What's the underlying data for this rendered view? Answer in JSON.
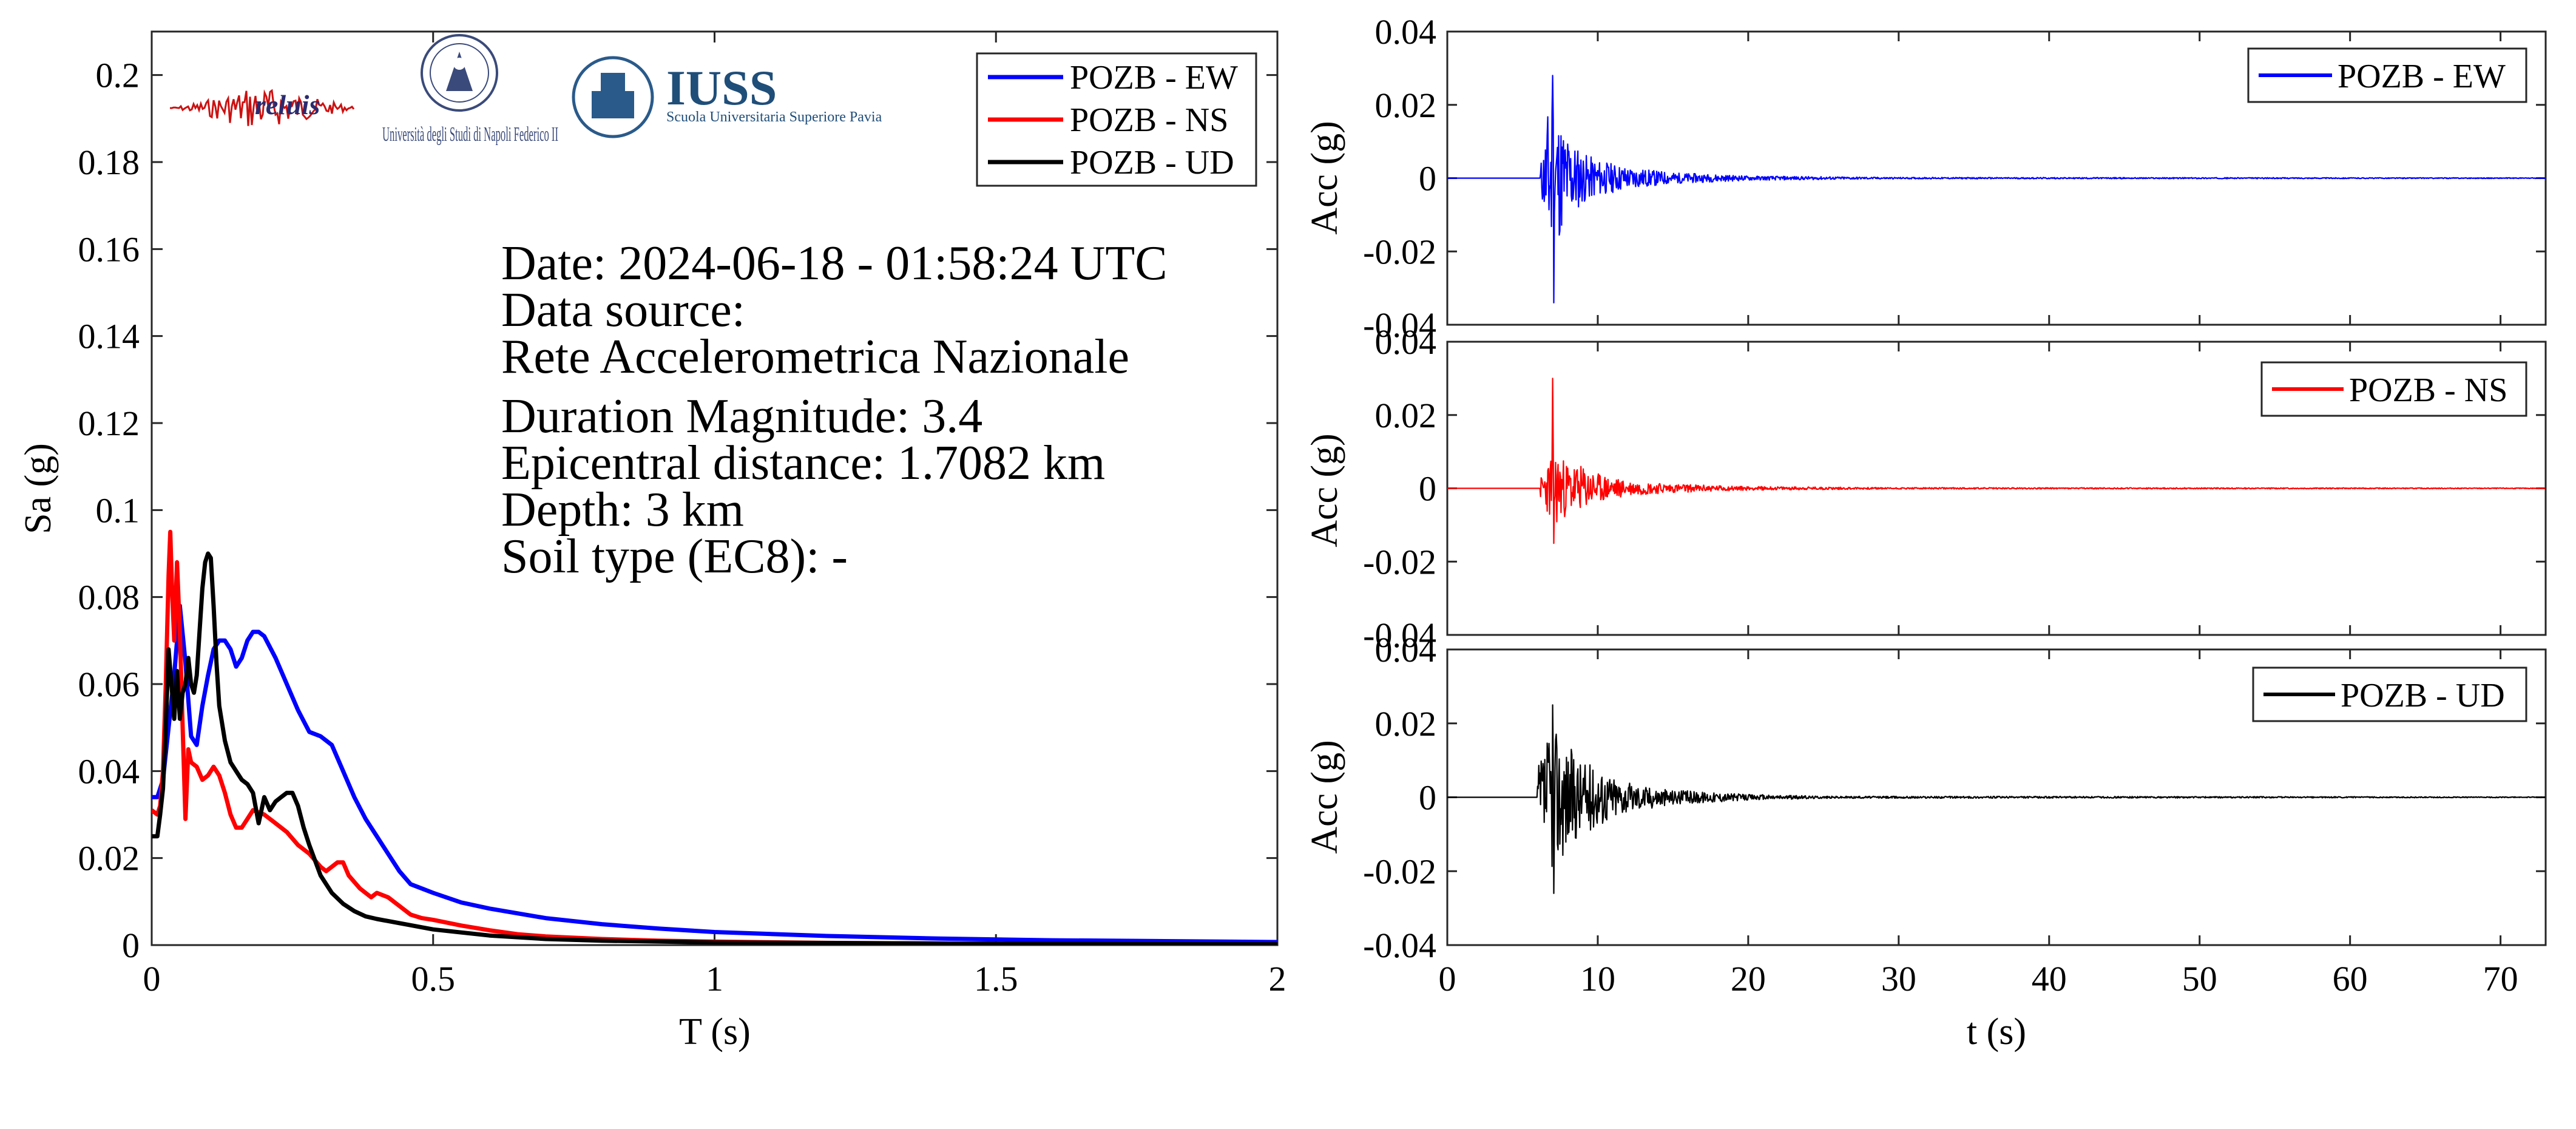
{
  "chart_data": [
    {
      "type": "line",
      "xlabel": "T (s)",
      "ylabel": "Sa (g)",
      "xlim": [
        0,
        2
      ],
      "ylim": [
        0,
        0.21
      ],
      "xticks": [
        0,
        0.5,
        1,
        1.5,
        2
      ],
      "xtick_labels": [
        "0",
        "0.5",
        "1",
        "1.5",
        "2"
      ],
      "yticks": [
        0,
        0.02,
        0.04,
        0.06,
        0.08,
        0.1,
        0.12,
        0.14,
        0.16,
        0.18,
        0.2
      ],
      "ytick_labels": [
        "0",
        "0.02",
        "0.04",
        "0.06",
        "0.08",
        "0.1",
        "0.12",
        "0.14",
        "0.16",
        "0.18",
        "0.2"
      ],
      "grid": false,
      "legend_position": "top-right",
      "annotations": [
        "Date: 2024-06-18 - 01:58:24 UTC",
        "Data source:",
        "Rete Accelerometrica Nazionale",
        "Duration Magnitude: 3.4",
        "Epicentral distance: 1.7082 km",
        "Depth: 3 km",
        "Soil type (EC8): -"
      ],
      "series": [
        {
          "name": "POZB - EW",
          "color": "#0000ff",
          "points": [
            [
              0,
              0.034
            ],
            [
              0.01,
              0.034
            ],
            [
              0.02,
              0.038
            ],
            [
              0.03,
              0.05
            ],
            [
              0.04,
              0.062
            ],
            [
              0.05,
              0.078
            ],
            [
              0.06,
              0.065
            ],
            [
              0.07,
              0.048
            ],
            [
              0.08,
              0.046
            ],
            [
              0.09,
              0.055
            ],
            [
              0.1,
              0.062
            ],
            [
              0.11,
              0.068
            ],
            [
              0.12,
              0.07
            ],
            [
              0.13,
              0.07
            ],
            [
              0.14,
              0.068
            ],
            [
              0.15,
              0.064
            ],
            [
              0.16,
              0.066
            ],
            [
              0.17,
              0.07
            ],
            [
              0.18,
              0.072
            ],
            [
              0.19,
              0.072
            ],
            [
              0.2,
              0.071
            ],
            [
              0.22,
              0.066
            ],
            [
              0.24,
              0.06
            ],
            [
              0.26,
              0.054
            ],
            [
              0.28,
              0.049
            ],
            [
              0.3,
              0.048
            ],
            [
              0.32,
              0.046
            ],
            [
              0.34,
              0.04
            ],
            [
              0.36,
              0.034
            ],
            [
              0.38,
              0.029
            ],
            [
              0.4,
              0.025
            ],
            [
              0.42,
              0.021
            ],
            [
              0.44,
              0.017
            ],
            [
              0.46,
              0.014
            ],
            [
              0.48,
              0.013
            ],
            [
              0.5,
              0.012
            ],
            [
              0.55,
              0.0098
            ],
            [
              0.6,
              0.0084
            ],
            [
              0.7,
              0.0062
            ],
            [
              0.8,
              0.0048
            ],
            [
              0.9,
              0.0038
            ],
            [
              1.0,
              0.003
            ],
            [
              1.2,
              0.0021
            ],
            [
              1.4,
              0.0015
            ],
            [
              1.6,
              0.0011
            ],
            [
              1.8,
              0.0009
            ],
            [
              2.0,
              0.0007
            ]
          ]
        },
        {
          "name": "POZB - NS",
          "color": "#ff0000",
          "points": [
            [
              0,
              0.031
            ],
            [
              0.01,
              0.03
            ],
            [
              0.015,
              0.032
            ],
            [
              0.02,
              0.04
            ],
            [
              0.025,
              0.06
            ],
            [
              0.03,
              0.085
            ],
            [
              0.033,
              0.095
            ],
            [
              0.036,
              0.082
            ],
            [
              0.04,
              0.07
            ],
            [
              0.045,
              0.088
            ],
            [
              0.05,
              0.072
            ],
            [
              0.055,
              0.05
            ],
            [
              0.06,
              0.029
            ],
            [
              0.065,
              0.045
            ],
            [
              0.07,
              0.042
            ],
            [
              0.08,
              0.041
            ],
            [
              0.09,
              0.038
            ],
            [
              0.1,
              0.039
            ],
            [
              0.11,
              0.041
            ],
            [
              0.12,
              0.039
            ],
            [
              0.13,
              0.035
            ],
            [
              0.14,
              0.03
            ],
            [
              0.15,
              0.027
            ],
            [
              0.16,
              0.027
            ],
            [
              0.17,
              0.029
            ],
            [
              0.18,
              0.031
            ],
            [
              0.2,
              0.03
            ],
            [
              0.22,
              0.028
            ],
            [
              0.24,
              0.026
            ],
            [
              0.26,
              0.023
            ],
            [
              0.28,
              0.021
            ],
            [
              0.3,
              0.018
            ],
            [
              0.31,
              0.017
            ],
            [
              0.32,
              0.018
            ],
            [
              0.33,
              0.019
            ],
            [
              0.34,
              0.019
            ],
            [
              0.35,
              0.016
            ],
            [
              0.37,
              0.013
            ],
            [
              0.39,
              0.011
            ],
            [
              0.4,
              0.012
            ],
            [
              0.42,
              0.011
            ],
            [
              0.44,
              0.009
            ],
            [
              0.46,
              0.007
            ],
            [
              0.48,
              0.0062
            ],
            [
              0.5,
              0.0058
            ],
            [
              0.55,
              0.0045
            ],
            [
              0.6,
              0.0034
            ],
            [
              0.65,
              0.0025
            ],
            [
              0.7,
              0.002
            ],
            [
              0.8,
              0.0014
            ],
            [
              0.9,
              0.001
            ],
            [
              1.0,
              0.0008
            ],
            [
              1.2,
              0.0005
            ],
            [
              1.5,
              0.0003
            ],
            [
              2.0,
              0.0002
            ]
          ]
        },
        {
          "name": "POZB - UD",
          "color": "#000000",
          "points": [
            [
              0,
              0.025
            ],
            [
              0.01,
              0.025
            ],
            [
              0.015,
              0.03
            ],
            [
              0.02,
              0.036
            ],
            [
              0.025,
              0.05
            ],
            [
              0.03,
              0.068
            ],
            [
              0.035,
              0.06
            ],
            [
              0.04,
              0.052
            ],
            [
              0.045,
              0.063
            ],
            [
              0.05,
              0.052
            ],
            [
              0.055,
              0.058
            ],
            [
              0.06,
              0.06
            ],
            [
              0.065,
              0.066
            ],
            [
              0.07,
              0.06
            ],
            [
              0.075,
              0.058
            ],
            [
              0.08,
              0.062
            ],
            [
              0.085,
              0.072
            ],
            [
              0.09,
              0.082
            ],
            [
              0.095,
              0.088
            ],
            [
              0.1,
              0.09
            ],
            [
              0.105,
              0.089
            ],
            [
              0.11,
              0.078
            ],
            [
              0.115,
              0.065
            ],
            [
              0.12,
              0.055
            ],
            [
              0.13,
              0.047
            ],
            [
              0.14,
              0.042
            ],
            [
              0.15,
              0.04
            ],
            [
              0.16,
              0.038
            ],
            [
              0.17,
              0.037
            ],
            [
              0.18,
              0.035
            ],
            [
              0.19,
              0.028
            ],
            [
              0.2,
              0.034
            ],
            [
              0.21,
              0.031
            ],
            [
              0.22,
              0.033
            ],
            [
              0.23,
              0.034
            ],
            [
              0.24,
              0.035
            ],
            [
              0.25,
              0.035
            ],
            [
              0.26,
              0.032
            ],
            [
              0.27,
              0.027
            ],
            [
              0.28,
              0.023
            ],
            [
              0.3,
              0.016
            ],
            [
              0.32,
              0.012
            ],
            [
              0.34,
              0.0095
            ],
            [
              0.36,
              0.0078
            ],
            [
              0.38,
              0.0066
            ],
            [
              0.4,
              0.006
            ],
            [
              0.45,
              0.0048
            ],
            [
              0.5,
              0.0036
            ],
            [
              0.6,
              0.0022
            ],
            [
              0.7,
              0.0014
            ],
            [
              0.8,
              0.001
            ],
            [
              1.0,
              0.0006
            ],
            [
              1.5,
              0.0003
            ],
            [
              2.0,
              0.0002
            ]
          ]
        }
      ],
      "logos": [
        "reluis",
        "Università degli Studi di Napoli Federico II",
        "IUSS",
        "Scuola Universitaria Superiore Pavia"
      ]
    },
    {
      "type": "line",
      "xlabel": "",
      "ylabel": "Acc (g)",
      "xlim": [
        0,
        73
      ],
      "ylim": [
        -0.04,
        0.04
      ],
      "yticks": [
        -0.04,
        -0.02,
        0,
        0.02,
        0.04
      ],
      "ytick_labels": [
        "-0.04",
        "-0.02",
        "0",
        "0.02",
        "0.04"
      ],
      "legend_position": "top-right",
      "series": [
        {
          "name": "POZB - EW",
          "color": "#0000ff",
          "onset": 6.2,
          "peak_positive": 0.028,
          "peak_negative": -0.034,
          "envelope": [
            [
              6.2,
              0.004
            ],
            [
              6.5,
              0.012
            ],
            [
              7.0,
              0.03
            ],
            [
              7.3,
              0.018
            ],
            [
              8.0,
              0.012
            ],
            [
              9.0,
              0.007
            ],
            [
              10.0,
              0.005
            ],
            [
              12.0,
              0.003
            ],
            [
              15.0,
              0.0015
            ],
            [
              20.0,
              0.0006
            ],
            [
              30.0,
              0.0002
            ],
            [
              73.0,
              0.0001
            ]
          ]
        }
      ]
    },
    {
      "type": "line",
      "xlabel": "",
      "ylabel": "Acc (g)",
      "xlim": [
        0,
        73
      ],
      "ylim": [
        -0.04,
        0.04
      ],
      "yticks": [
        -0.04,
        -0.02,
        0,
        0.02,
        0.04
      ],
      "ytick_labels": [
        "-0.04",
        "-0.02",
        "0",
        "0.02",
        "0.04"
      ],
      "legend_position": "top-right",
      "series": [
        {
          "name": "POZB - NS",
          "color": "#ff0000",
          "onset": 6.2,
          "peak_positive": 0.03,
          "peak_negative": -0.015,
          "envelope": [
            [
              6.2,
              0.003
            ],
            [
              6.6,
              0.006
            ],
            [
              7.0,
              0.012
            ],
            [
              7.3,
              0.01
            ],
            [
              8.0,
              0.007
            ],
            [
              9.0,
              0.006
            ],
            [
              10.0,
              0.004
            ],
            [
              12.0,
              0.002
            ],
            [
              15.0,
              0.0012
            ],
            [
              20.0,
              0.0005
            ],
            [
              30.0,
              0.0002
            ],
            [
              73.0,
              0.0001
            ]
          ]
        }
      ]
    },
    {
      "type": "line",
      "xlabel": "t (s)",
      "ylabel": "Acc (g)",
      "xlim": [
        0,
        73
      ],
      "ylim": [
        -0.04,
        0.04
      ],
      "xticks": [
        0,
        10,
        20,
        30,
        40,
        50,
        60,
        70
      ],
      "xtick_labels": [
        "0",
        "10",
        "20",
        "30",
        "40",
        "50",
        "60",
        "70"
      ],
      "yticks": [
        -0.04,
        -0.02,
        0,
        0.02,
        0.04
      ],
      "ytick_labels": [
        "-0.04",
        "-0.02",
        "0",
        "0.02",
        "0.04"
      ],
      "legend_position": "top-right",
      "series": [
        {
          "name": "POZB - UD",
          "color": "#000000",
          "onset": 6.0,
          "peak_positive": 0.025,
          "peak_negative": -0.026,
          "envelope": [
            [
              6.0,
              0.008
            ],
            [
              6.5,
              0.014
            ],
            [
              7.0,
              0.02
            ],
            [
              7.5,
              0.017
            ],
            [
              8.0,
              0.014
            ],
            [
              9.0,
              0.01
            ],
            [
              10.0,
              0.008
            ],
            [
              12.0,
              0.004
            ],
            [
              15.0,
              0.002
            ],
            [
              20.0,
              0.0008
            ],
            [
              25.0,
              0.0003
            ],
            [
              73.0,
              0.0001
            ]
          ]
        }
      ]
    }
  ]
}
